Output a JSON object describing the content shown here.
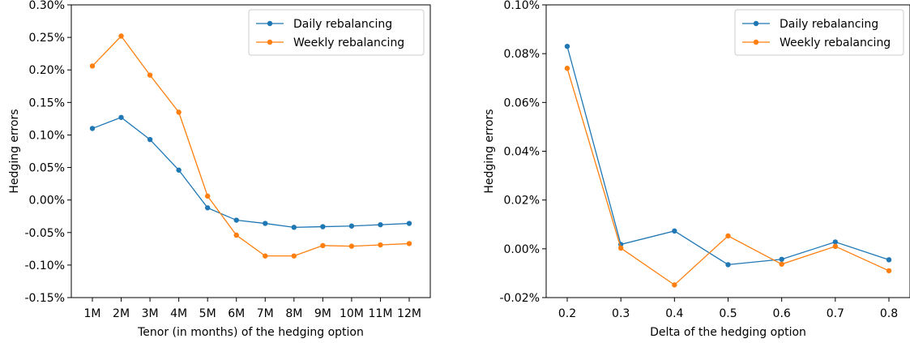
{
  "chart_data": [
    {
      "type": "line",
      "xlabel": "Tenor (in months) of the hedging option",
      "ylabel": "Hedging errors",
      "categories": [
        "1M",
        "2M",
        "3M",
        "4M",
        "5M",
        "6M",
        "7M",
        "8M",
        "9M",
        "10M",
        "11M",
        "12M"
      ],
      "ylim": [
        -0.15,
        0.3
      ],
      "yticks": [
        -0.15,
        -0.1,
        -0.05,
        0.0,
        0.05,
        0.1,
        0.15,
        0.2,
        0.25,
        0.3
      ],
      "ytick_labels": [
        "-0.15%",
        "-0.10%",
        "-0.05%",
        "0.00%",
        "0.05%",
        "0.10%",
        "0.15%",
        "0.20%",
        "0.25%",
        "0.30%"
      ],
      "yunit": "%",
      "legend": "top-right",
      "grid": false,
      "series": [
        {
          "name": "Daily rebalancing",
          "color": "#1f77b4",
          "values": [
            0.11,
            0.127,
            0.093,
            0.046,
            -0.012,
            -0.031,
            -0.036,
            -0.042,
            -0.041,
            -0.04,
            -0.038,
            -0.036
          ]
        },
        {
          "name": "Weekly rebalancing",
          "color": "#ff7f0e",
          "values": [
            0.206,
            0.252,
            0.192,
            0.135,
            0.006,
            -0.054,
            -0.086,
            -0.086,
            -0.07,
            -0.071,
            -0.069,
            -0.067
          ]
        }
      ]
    },
    {
      "type": "line",
      "xlabel": "Delta of the hedging option",
      "ylabel": "Hedging errors",
      "categories": [
        "0.2",
        "0.3",
        "0.4",
        "0.5",
        "0.6",
        "0.7",
        "0.8"
      ],
      "ylim": [
        -0.02,
        0.1
      ],
      "yticks": [
        -0.02,
        0.0,
        0.02,
        0.04,
        0.06,
        0.08,
        0.1
      ],
      "ytick_labels": [
        "-0.02%",
        "0.00%",
        "0.02%",
        "0.04%",
        "0.06%",
        "0.08%",
        "0.10%"
      ],
      "yunit": "%",
      "legend": "top-right",
      "grid": false,
      "series": [
        {
          "name": "Daily rebalancing",
          "color": "#1f77b4",
          "values": [
            0.083,
            0.0018,
            0.0073,
            -0.0065,
            -0.0043,
            0.0028,
            -0.0045
          ]
        },
        {
          "name": "Weekly rebalancing",
          "color": "#ff7f0e",
          "values": [
            0.074,
            0.0003,
            -0.0148,
            0.0053,
            -0.0063,
            0.001,
            -0.009
          ]
        }
      ]
    }
  ]
}
